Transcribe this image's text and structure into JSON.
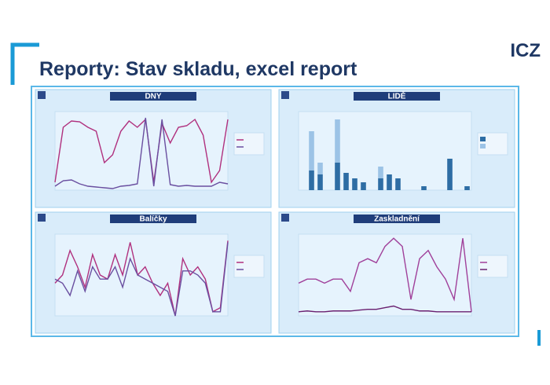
{
  "header": {
    "title": "Reporty: Stav skladu, excel report",
    "logo": "ICZ"
  },
  "panels": [
    {
      "title": "DNY",
      "chart_data": {
        "type": "line",
        "ylim": [
          0,
          100
        ],
        "series": [
          {
            "color": "#b0307e",
            "values": [
              10,
              80,
              88,
              87,
              80,
              75,
              35,
              45,
              75,
              88,
              80,
              90,
              10,
              85,
              60,
              80,
              82,
              90,
              70,
              10,
              25,
              90
            ]
          },
          {
            "color": "#6a4fa0",
            "values": [
              5,
              12,
              13,
              8,
              5,
              4,
              3,
              2,
              5,
              6,
              8,
              92,
              5,
              90,
              7,
              5,
              6,
              5,
              5,
              5,
              10,
              8
            ]
          }
        ]
      }
    },
    {
      "title": "LIDĚ",
      "chart_data": {
        "type": "stacked-bar",
        "ylim": [
          0,
          100
        ],
        "series": [
          {
            "color": "#2e6da4",
            "values": [
              0,
              25,
              20,
              0,
              35,
              22,
              15,
              10,
              0,
              15,
              20,
              15,
              0,
              0,
              5,
              0,
              0,
              40,
              0,
              5
            ]
          },
          {
            "color": "#9cc3e6",
            "values": [
              0,
              50,
              15,
              0,
              55,
              0,
              0,
              0,
              0,
              15,
              0,
              0,
              0,
              0,
              0,
              0,
              0,
              0,
              0,
              0
            ]
          }
        ]
      }
    },
    {
      "title": "Balíčky",
      "chart_data": {
        "type": "line",
        "ylim": [
          0,
          100
        ],
        "series": [
          {
            "color": "#b0307e",
            "values": [
              40,
              50,
              80,
              60,
              35,
              75,
              50,
              45,
              75,
              50,
              90,
              50,
              60,
              40,
              25,
              40,
              0,
              70,
              50,
              60,
              45,
              5,
              10,
              92
            ]
          },
          {
            "color": "#6a4fa0",
            "values": [
              45,
              40,
              25,
              55,
              30,
              60,
              45,
              45,
              60,
              35,
              70,
              50,
              45,
              40,
              35,
              30,
              0,
              55,
              55,
              50,
              40,
              5,
              5,
              90
            ]
          }
        ]
      }
    },
    {
      "title": "Zaskladnění",
      "chart_data": {
        "type": "line",
        "ylim": [
          0,
          100
        ],
        "series": [
          {
            "color": "#a0409a",
            "values": [
              40,
              45,
              45,
              40,
              45,
              45,
              30,
              65,
              70,
              65,
              85,
              95,
              85,
              20,
              70,
              80,
              60,
              45,
              20,
              95,
              5
            ]
          },
          {
            "color": "#6a2070",
            "values": [
              5,
              6,
              5,
              5,
              6,
              6,
              6,
              7,
              8,
              8,
              10,
              12,
              8,
              8,
              6,
              6,
              5,
              5,
              5,
              5,
              5
            ]
          }
        ]
      }
    }
  ]
}
